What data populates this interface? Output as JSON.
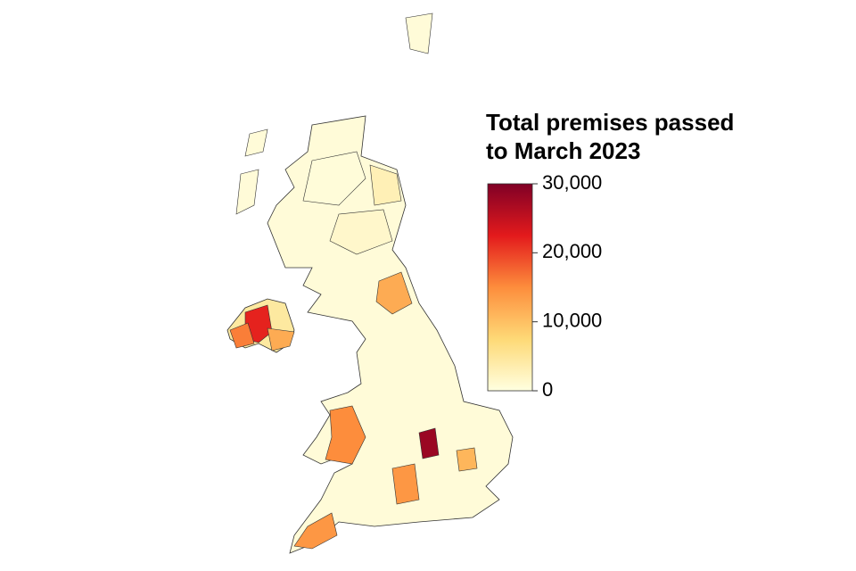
{
  "chart_data": {
    "type": "choropleth",
    "title": [
      "Total premises passed",
      "to March 2023"
    ],
    "colorbar": {
      "lim": [
        0,
        30000
      ],
      "ticks": [
        {
          "value": 0,
          "label": "0"
        },
        {
          "value": 10000,
          "label": "10,000"
        },
        {
          "value": 20000,
          "label": "20,000"
        },
        {
          "value": 30000,
          "label": "30,000"
        }
      ],
      "colors": [
        "#ffffe0",
        "#fed976",
        "#fd8d3c",
        "#e31a1c",
        "#800026"
      ]
    },
    "regions": {
      "values": [
        500,
        1500,
        3000,
        12000,
        22000,
        16000,
        15000,
        14000,
        14000,
        28000,
        11000,
        12000
      ]
    }
  }
}
